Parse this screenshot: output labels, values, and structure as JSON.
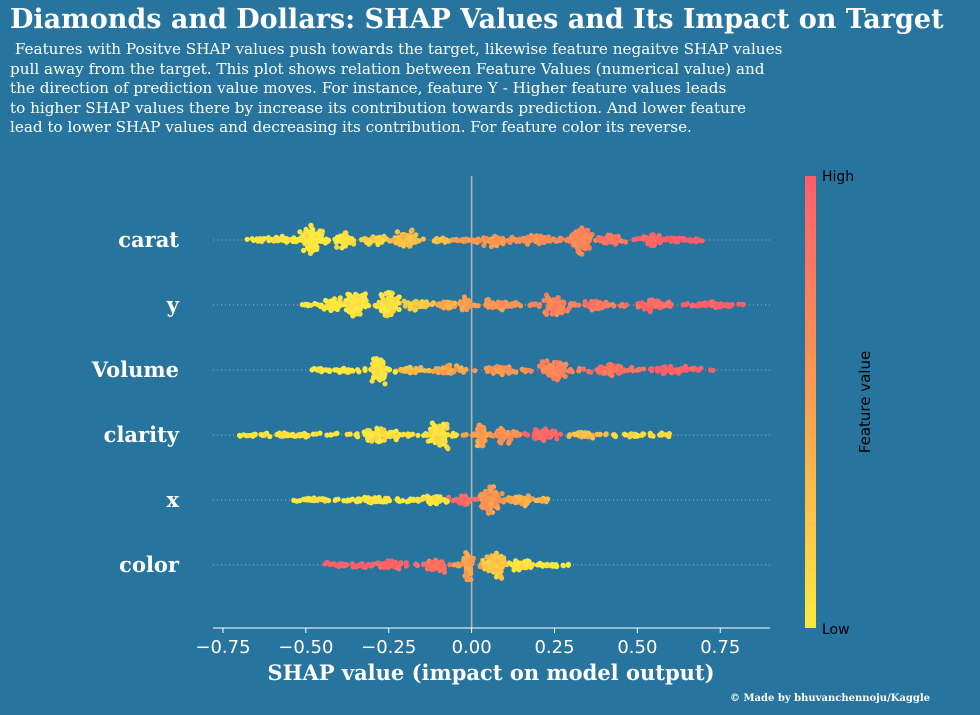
{
  "title": "Diamonds and Dollars: SHAP Values and Its Impact on Target",
  "subtitle_lines": [
    " Features with Positve SHAP values push towards the target, likewise feature negaitve SHAP values",
    "pull away from the target. This plot shows relation between Feature Values (numerical value) and",
    "the direction of prediction value moves. For instance, feature Y - Higher feature values leads",
    "to higher SHAP values there by increase its contribution towards prediction. And lower feature",
    "lead to lower SHAP values and decreasing its contribution. For feature color its reverse."
  ],
  "footer": "© Made by bhuvanchennoju/Kaggle",
  "colors": {
    "background": "#27759f",
    "low": "#fde93e",
    "mid": "#fb9e4e",
    "high": "#fe5e6a",
    "zero_line": "#b9b3a4",
    "text": "#ffffff"
  },
  "chart_data": {
    "type": "scatter",
    "subtype": "shap-beeswarm",
    "xlabel": "SHAP value (impact on model output)",
    "xlim": [
      -0.78,
      0.9
    ],
    "xticks": [
      -0.75,
      -0.5,
      -0.25,
      0.0,
      0.25,
      0.5,
      0.75
    ],
    "xtick_labels": [
      "−0.75",
      "−0.50",
      "−0.25",
      "0.00",
      "0.25",
      "0.50",
      "0.75"
    ],
    "colorbar": {
      "label": "Feature value",
      "high_label": "High",
      "low_label": "Low"
    },
    "features": [
      {
        "name": "carat",
        "min": -0.67,
        "max": 0.71,
        "clusters": [
          {
            "x": -0.65,
            "w": 0.04,
            "n": 6,
            "s": 0.15,
            "c": 0.0
          },
          {
            "x": -0.58,
            "w": 0.06,
            "n": 20,
            "s": 0.3,
            "c": 0.0
          },
          {
            "x": -0.48,
            "w": 0.05,
            "n": 90,
            "s": 0.95,
            "c": 0.0
          },
          {
            "x": -0.38,
            "w": 0.04,
            "n": 45,
            "s": 0.6,
            "c": 0.05
          },
          {
            "x": -0.3,
            "w": 0.05,
            "n": 25,
            "s": 0.35,
            "c": 0.15
          },
          {
            "x": -0.2,
            "w": 0.05,
            "n": 55,
            "s": 0.7,
            "c": 0.3
          },
          {
            "x": -0.1,
            "w": 0.04,
            "n": 12,
            "s": 0.2,
            "c": 0.3
          },
          {
            "x": -0.02,
            "w": 0.04,
            "n": 10,
            "s": 0.18,
            "c": 0.5
          },
          {
            "x": 0.07,
            "w": 0.07,
            "n": 45,
            "s": 0.45,
            "c": 0.55
          },
          {
            "x": 0.2,
            "w": 0.07,
            "n": 40,
            "s": 0.35,
            "c": 0.62
          },
          {
            "x": 0.33,
            "w": 0.04,
            "n": 90,
            "s": 0.95,
            "c": 0.7
          },
          {
            "x": 0.42,
            "w": 0.05,
            "n": 30,
            "s": 0.35,
            "c": 0.8
          },
          {
            "x": 0.54,
            "w": 0.04,
            "n": 35,
            "s": 0.45,
            "c": 0.95
          },
          {
            "x": 0.63,
            "w": 0.06,
            "n": 18,
            "s": 0.25,
            "c": 1.0
          }
        ]
      },
      {
        "name": "y",
        "min": -0.5,
        "max": 0.82,
        "clusters": [
          {
            "x": -0.49,
            "w": 0.04,
            "n": 6,
            "s": 0.15,
            "c": 0.0
          },
          {
            "x": -0.42,
            "w": 0.04,
            "n": 35,
            "s": 0.55,
            "c": 0.0
          },
          {
            "x": -0.35,
            "w": 0.04,
            "n": 95,
            "s": 1.0,
            "c": 0.0
          },
          {
            "x": -0.25,
            "w": 0.04,
            "n": 85,
            "s": 0.95,
            "c": 0.05
          },
          {
            "x": -0.16,
            "w": 0.05,
            "n": 30,
            "s": 0.35,
            "c": 0.25
          },
          {
            "x": -0.07,
            "w": 0.04,
            "n": 20,
            "s": 0.3,
            "c": 0.4
          },
          {
            "x": -0.02,
            "w": 0.02,
            "n": 35,
            "s": 0.6,
            "c": 0.5
          },
          {
            "x": 0.08,
            "w": 0.08,
            "n": 40,
            "s": 0.35,
            "c": 0.58
          },
          {
            "x": 0.25,
            "w": 0.05,
            "n": 70,
            "s": 0.8,
            "c": 0.7
          },
          {
            "x": 0.38,
            "w": 0.06,
            "n": 40,
            "s": 0.45,
            "c": 0.8
          },
          {
            "x": 0.55,
            "w": 0.06,
            "n": 45,
            "s": 0.5,
            "c": 0.92
          },
          {
            "x": 0.72,
            "w": 0.07,
            "n": 25,
            "s": 0.3,
            "c": 1.0
          }
        ]
      },
      {
        "name": "Volume",
        "min": -0.48,
        "max": 0.74,
        "clusters": [
          {
            "x": -0.45,
            "w": 0.04,
            "n": 6,
            "s": 0.12,
            "c": 0.0
          },
          {
            "x": -0.38,
            "w": 0.05,
            "n": 15,
            "s": 0.25,
            "c": 0.0
          },
          {
            "x": -0.28,
            "w": 0.03,
            "n": 90,
            "s": 1.0,
            "c": 0.02
          },
          {
            "x": -0.18,
            "w": 0.05,
            "n": 20,
            "s": 0.3,
            "c": 0.3
          },
          {
            "x": -0.06,
            "w": 0.06,
            "n": 25,
            "s": 0.3,
            "c": 0.45
          },
          {
            "x": 0.08,
            "w": 0.07,
            "n": 35,
            "s": 0.35,
            "c": 0.55
          },
          {
            "x": 0.25,
            "w": 0.06,
            "n": 70,
            "s": 0.75,
            "c": 0.7
          },
          {
            "x": 0.42,
            "w": 0.07,
            "n": 45,
            "s": 0.45,
            "c": 0.85
          },
          {
            "x": 0.62,
            "w": 0.08,
            "n": 25,
            "s": 0.3,
            "c": 1.0
          }
        ]
      },
      {
        "name": "clarity",
        "min": -0.7,
        "max": 0.6,
        "clusters": [
          {
            "x": -0.65,
            "w": 0.05,
            "n": 8,
            "s": 0.12,
            "c": 0.0
          },
          {
            "x": -0.52,
            "w": 0.07,
            "n": 25,
            "s": 0.18,
            "c": 0.0
          },
          {
            "x": -0.28,
            "w": 0.07,
            "n": 50,
            "s": 0.6,
            "c": 0.05
          },
          {
            "x": -0.1,
            "w": 0.04,
            "n": 85,
            "s": 1.0,
            "c": 0.05
          },
          {
            "x": 0.03,
            "w": 0.02,
            "n": 55,
            "s": 0.9,
            "c": 0.5
          },
          {
            "x": 0.1,
            "w": 0.04,
            "n": 35,
            "s": 0.55,
            "c": 0.6
          },
          {
            "x": 0.22,
            "w": 0.05,
            "n": 40,
            "s": 0.55,
            "c": 0.95
          },
          {
            "x": 0.34,
            "w": 0.05,
            "n": 18,
            "s": 0.25,
            "c": 0.3
          },
          {
            "x": 0.48,
            "w": 0.06,
            "n": 7,
            "s": 0.1,
            "c": 0.1
          }
        ]
      },
      {
        "name": "x",
        "min": -0.55,
        "max": 0.25,
        "clusters": [
          {
            "x": -0.48,
            "w": 0.07,
            "n": 20,
            "s": 0.15,
            "c": 0.0
          },
          {
            "x": -0.3,
            "w": 0.08,
            "n": 45,
            "s": 0.25,
            "c": 0.0
          },
          {
            "x": -0.12,
            "w": 0.06,
            "n": 45,
            "s": 0.35,
            "c": 0.02
          },
          {
            "x": -0.02,
            "w": 0.03,
            "n": 30,
            "s": 0.4,
            "c": 0.9
          },
          {
            "x": 0.06,
            "w": 0.04,
            "n": 100,
            "s": 1.0,
            "c": 0.55
          },
          {
            "x": 0.15,
            "w": 0.05,
            "n": 40,
            "s": 0.4,
            "c": 0.4
          },
          {
            "x": 0.22,
            "w": 0.03,
            "n": 8,
            "s": 0.15,
            "c": 0.3
          }
        ]
      },
      {
        "name": "color",
        "min": -0.45,
        "max": 0.3,
        "clusters": [
          {
            "x": -0.4,
            "w": 0.05,
            "n": 15,
            "s": 0.15,
            "c": 1.0
          },
          {
            "x": -0.25,
            "w": 0.07,
            "n": 45,
            "s": 0.3,
            "c": 0.98
          },
          {
            "x": -0.1,
            "w": 0.05,
            "n": 50,
            "s": 0.45,
            "c": 0.85
          },
          {
            "x": -0.01,
            "w": 0.02,
            "n": 60,
            "s": 1.0,
            "c": 0.5
          },
          {
            "x": 0.07,
            "w": 0.04,
            "n": 80,
            "s": 0.85,
            "c": 0.25
          },
          {
            "x": 0.15,
            "w": 0.04,
            "n": 35,
            "s": 0.4,
            "c": 0.05
          },
          {
            "x": 0.24,
            "w": 0.04,
            "n": 12,
            "s": 0.15,
            "c": 0.0
          }
        ]
      }
    ]
  }
}
